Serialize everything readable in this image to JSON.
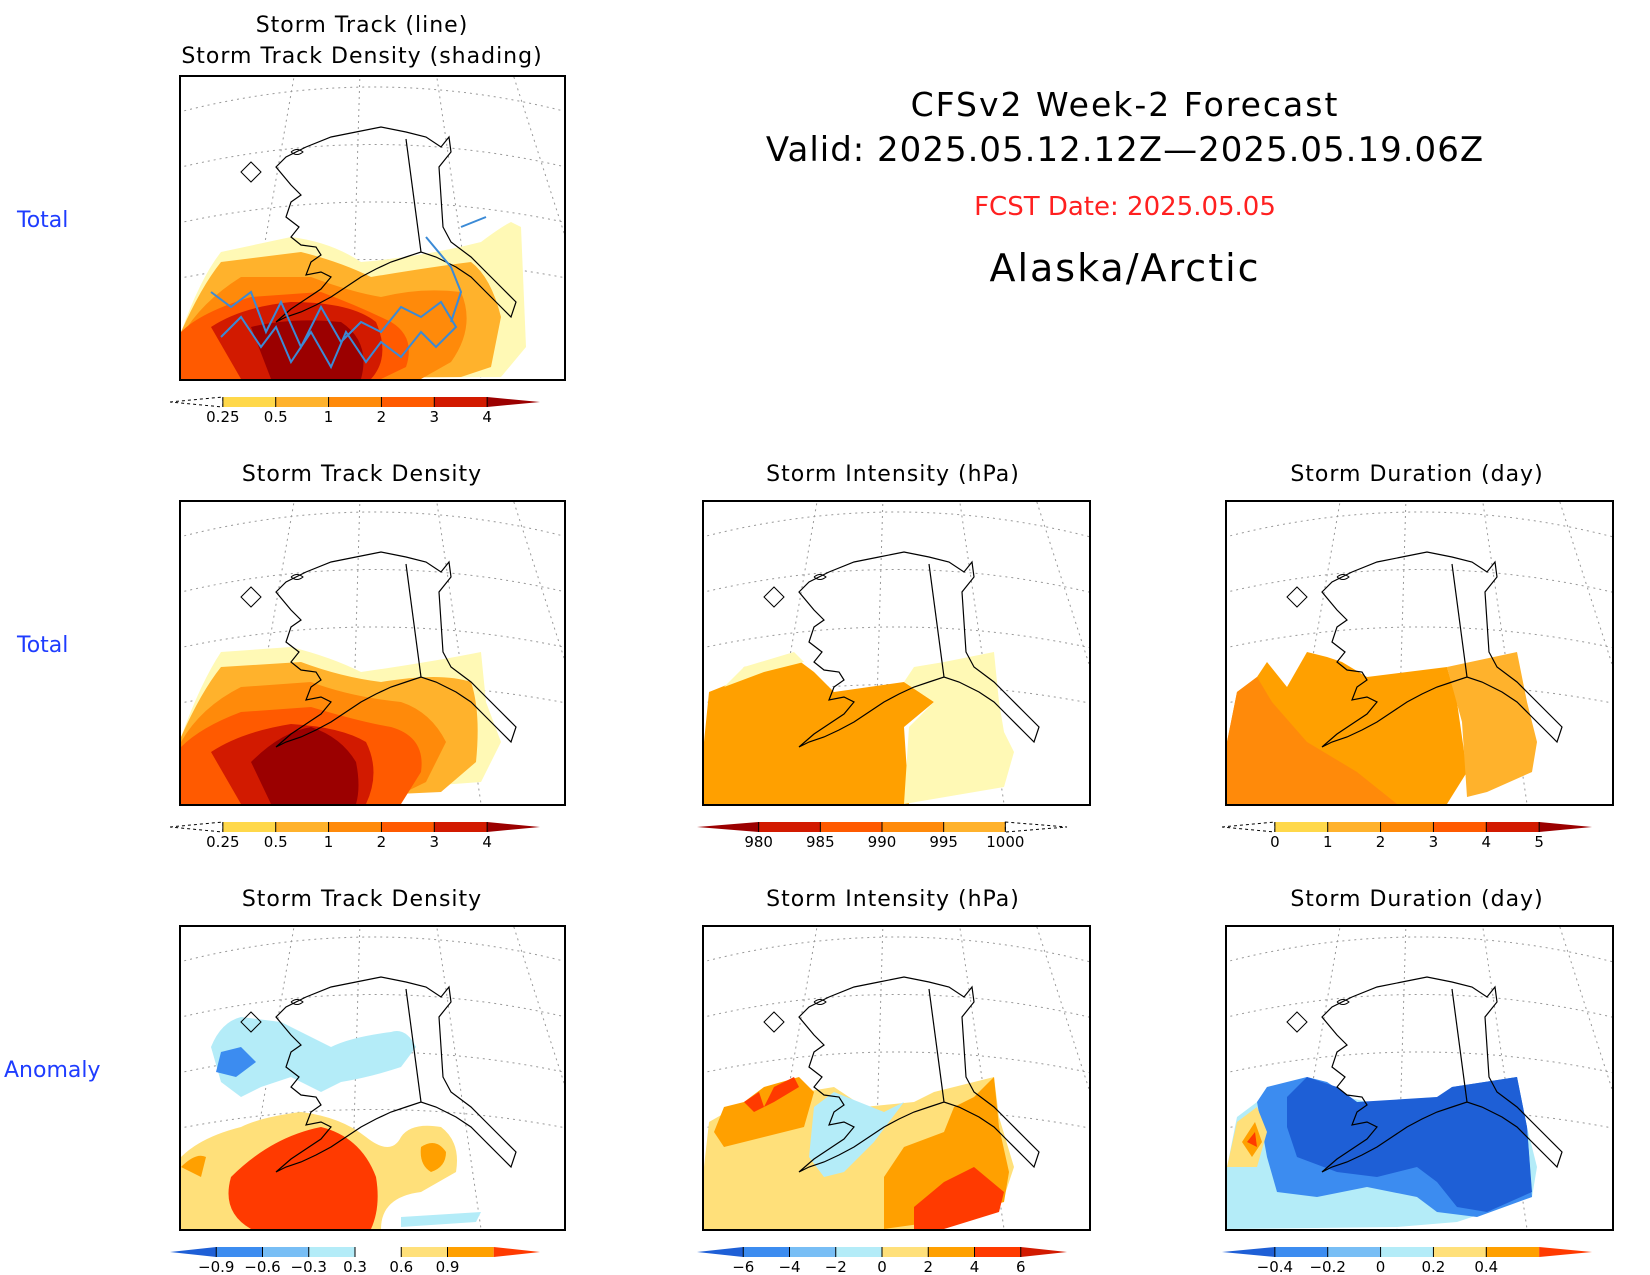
{
  "header": {
    "title": "CFSv2 Week-2 Forecast",
    "valid": "Valid: 2025.05.12.12Z—2025.05.19.06Z",
    "fcst_date": "FCST Date: 2025.05.05",
    "region": "Alaska/Arctic"
  },
  "row_labels": {
    "row1": "Total",
    "row2": "Total",
    "row3": "Anomaly"
  },
  "panels": {
    "p1": {
      "title": "Storm Track (line)\nStorm Track Density (shading)"
    },
    "p2": {
      "title": "Storm Track Density"
    },
    "p3": {
      "title": "Storm Intensity (hPa)"
    },
    "p4": {
      "title": "Storm Duration (day)"
    },
    "p5": {
      "title": "Storm Track Density"
    },
    "p6": {
      "title": "Storm Intensity (hPa)"
    },
    "p7": {
      "title": "Storm Duration (day)"
    }
  },
  "colorbars": {
    "density_total": {
      "labels": [
        "0.25",
        "0.5",
        "1",
        "2",
        "3",
        "4"
      ],
      "colors": [
        "#fff9b5",
        "#ffd84a",
        "#ffb22c",
        "#ff8a0a",
        "#ff5a00",
        "#d21a00",
        "#9b0000"
      ]
    },
    "intensity_total": {
      "labels": [
        "980",
        "985",
        "990",
        "995",
        "1000"
      ],
      "colors": [
        "#9b0000",
        "#d21a00",
        "#ff5a00",
        "#ff8a0a",
        "#ffb22c",
        "#fff9b5"
      ]
    },
    "duration_total": {
      "labels": [
        "0",
        "1",
        "2",
        "3",
        "4",
        "5"
      ],
      "colors": [
        "#fff9b5",
        "#ffd84a",
        "#ffb22c",
        "#ff8a0a",
        "#ff5a00",
        "#d21a00",
        "#9b0000"
      ]
    },
    "density_anom": {
      "labels": [
        "−0.9",
        "−0.6",
        "−0.3",
        "0.3",
        "0.6",
        "0.9"
      ],
      "colors": [
        "#1e5fd6",
        "#3c8cf0",
        "#78bef5",
        "#b4ecf8",
        "#ffffff",
        "#ffe07a",
        "#ffa000",
        "#ff3a00"
      ]
    },
    "intensity_anom": {
      "labels": [
        "−6",
        "−4",
        "−2",
        "0",
        "2",
        "4",
        "6"
      ],
      "colors": [
        "#1e5fd6",
        "#3c8cf0",
        "#78bef5",
        "#b4ecf8",
        "#ffe07a",
        "#ffa000",
        "#ff3a00",
        "#d21a00"
      ]
    },
    "duration_anom": {
      "labels": [
        "−0.4",
        "−0.2",
        "0",
        "0.2",
        "0.4"
      ],
      "colors": [
        "#1e5fd6",
        "#3c8cf0",
        "#78bef5",
        "#b4ecf8",
        "#ffe07a",
        "#ffa000",
        "#ff3a00"
      ]
    }
  }
}
